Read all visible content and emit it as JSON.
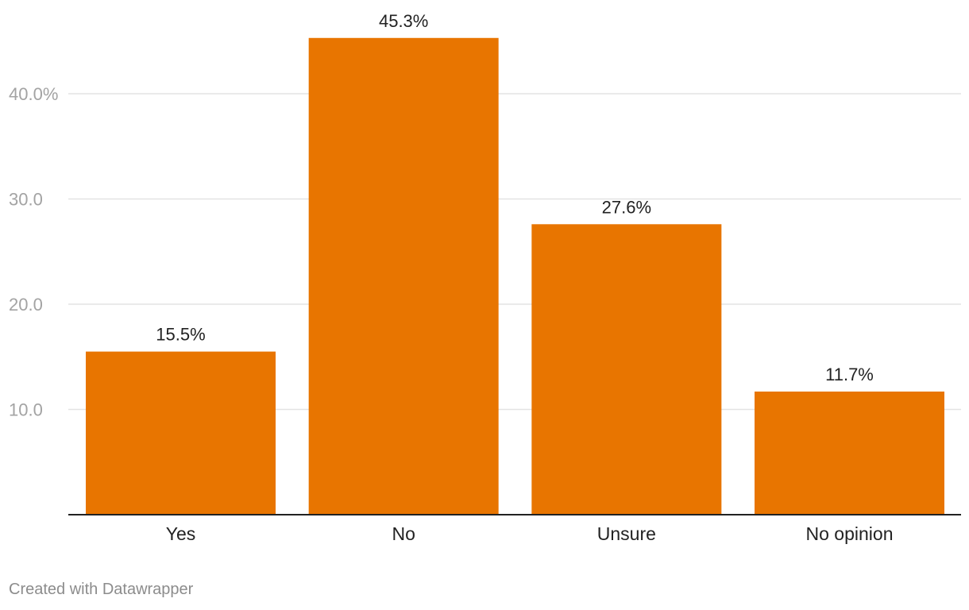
{
  "chart_data": {
    "type": "bar",
    "categories": [
      "Yes",
      "No",
      "Unsure",
      "No opinion"
    ],
    "values": [
      15.5,
      45.3,
      27.6,
      11.7
    ],
    "value_labels": [
      "15.5%",
      "45.3%",
      "27.6%",
      "11.7%"
    ],
    "y_ticks": [
      {
        "value": 10,
        "label": "10.0"
      },
      {
        "value": 20,
        "label": "20.0"
      },
      {
        "value": 30,
        "label": "30.0"
      },
      {
        "value": 40,
        "label": "40.0%"
      }
    ],
    "ylim": [
      0,
      50
    ],
    "grid": true,
    "legend": "none",
    "bar_color": "#e87500"
  },
  "credit": "Created with Datawrapper"
}
